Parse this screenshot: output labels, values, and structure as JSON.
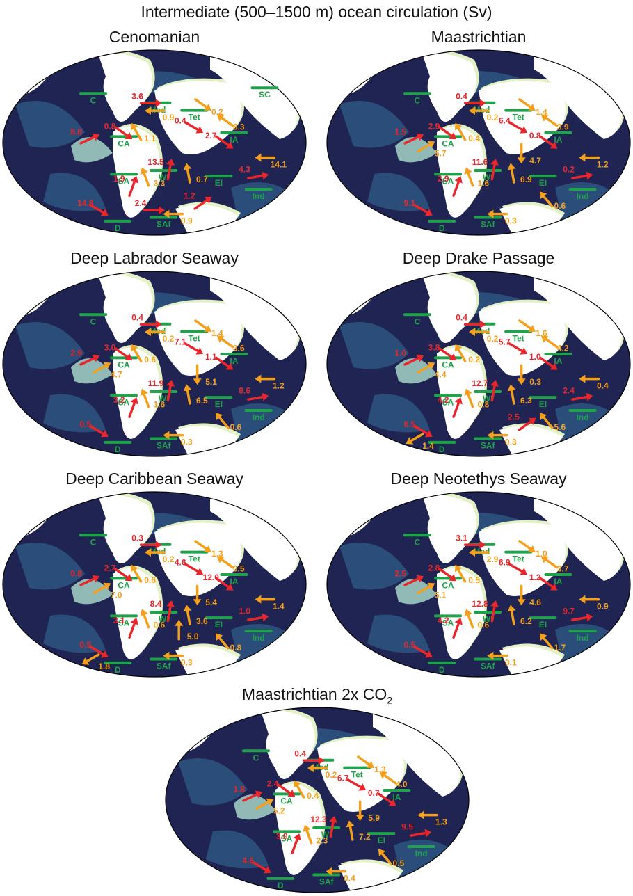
{
  "figure_title": "Intermediate (500–1500 m) ocean circulation (Sv)",
  "colors": {
    "red_arrow": "#e8262b",
    "orange_arrow": "#f4a01c",
    "gateway": "#1ea24a",
    "ocean_deep": "#1f2452",
    "ocean_shallow": "#aee0cf",
    "land": "#ffffff",
    "coast": "#e4f1c6"
  },
  "panels": [
    {
      "title": "Cenomanian",
      "gateways": [
        "C",
        "CA",
        "Med",
        "Tet",
        "SC",
        "IA",
        "SA",
        "WI",
        "EI",
        "Ind",
        "D",
        "SAf"
      ],
      "red_labels": [
        "3.6",
        "8.8",
        "0.8",
        "1.9",
        "0.4",
        "2.7",
        "13.5",
        "4.3",
        "14.8",
        "1.2",
        "2.4"
      ],
      "orange_labels": [
        "0.9",
        "0.2",
        "1.1",
        "3.3",
        "8.3",
        "14.1",
        "0.7",
        "0.9"
      ]
    },
    {
      "title": "Maastrichtian",
      "gateways": [
        "C",
        "CA",
        "Med",
        "Tet",
        "IA",
        "SA",
        "WI",
        "EI",
        "Ind",
        "D",
        "SAf"
      ],
      "red_labels": [
        "0.4",
        "1.5",
        "2.9",
        "2.9",
        "6.4",
        "0.8",
        "11.6",
        "0.2",
        "9.1"
      ],
      "orange_labels": [
        "0.2",
        "1.4",
        "0.4",
        "1.6",
        "3.9",
        "1.2",
        "6.9",
        "0.3",
        "0.6",
        "5.7",
        "4.7"
      ]
    },
    {
      "title": "Deep Labrador Seaway",
      "gateways": [
        "C",
        "CA",
        "Med",
        "Tet",
        "IA",
        "SA",
        "WI",
        "EI",
        "Ind",
        "D",
        "SAf"
      ],
      "red_labels": [
        "0.4",
        "2.9",
        "3.0",
        "3.2",
        "7.1",
        "1.1",
        "11.9",
        "8.6",
        "0.5"
      ],
      "orange_labels": [
        "0.2",
        "1.4",
        "0.6",
        "1.6",
        "3.6",
        "1.2",
        "6.5",
        "0.3",
        "0.6",
        "4.7",
        "5.1"
      ]
    },
    {
      "title": "Deep Drake Passage",
      "gateways": [
        "C",
        "CA",
        "Med",
        "Tet",
        "IA",
        "SA",
        "WI",
        "EI",
        "Ind",
        "D",
        "SAf"
      ],
      "red_labels": [
        "0.4",
        "1.0",
        "3.8",
        "4.2",
        "5.7",
        "1.0",
        "12.7",
        "2.4",
        "8.5",
        "2.5"
      ],
      "orange_labels": [
        "0.2",
        "1.6",
        "0.2",
        "0.8",
        "4.2",
        "0.4",
        "6.3",
        "0.3",
        "5.6",
        "4.4",
        "0.3",
        "1.4"
      ]
    },
    {
      "title": "Deep Caribbean Seaway",
      "gateways": [
        "C",
        "CA",
        "Med",
        "Tet",
        "IA",
        "SA",
        "WI",
        "EI",
        "Ind",
        "D",
        "SAf"
      ],
      "red_labels": [
        "0.3",
        "0.8",
        "2.7",
        "3.1",
        "4.6",
        "12.0",
        "8.4",
        "1.0",
        "0.5"
      ],
      "orange_labels": [
        "0.2",
        "1.3",
        "0.6",
        "0.6",
        "0.5",
        "1.4",
        "3.6",
        "0.3",
        "0.8",
        "7.0",
        "5.4",
        "1.8",
        "5.0"
      ]
    },
    {
      "title": "Deep Neotethys Seaway",
      "gateways": [
        "C",
        "CA",
        "Med",
        "Tet",
        "IA",
        "SA",
        "WI",
        "EI",
        "Ind",
        "D",
        "SAf"
      ],
      "red_labels": [
        "3.1",
        "2.5",
        "2.8",
        "4.2",
        "6.9",
        "1.2",
        "12.8",
        "9.7",
        "0.5"
      ],
      "orange_labels": [
        "2.9",
        "1.0",
        "0.5",
        "0.6",
        "3.7",
        "0.9",
        "6.2",
        "0.1",
        "1.7",
        "5.1",
        "4.6"
      ]
    },
    {
      "title": "Maastrichtian 2x CO",
      "title_sub": "2",
      "gateways": [
        "C",
        "CA",
        "Med",
        "Tet",
        "IA",
        "SA",
        "WI",
        "EI",
        "Ind",
        "D",
        "SAf"
      ],
      "red_labels": [
        "0.4",
        "1.8",
        "2.4",
        "3.0",
        "6.7",
        "0.7",
        "12.3",
        "9.5",
        "4.6"
      ],
      "orange_labels": [
        "0.2",
        "1.3",
        "0.4",
        "2.3",
        "4.0",
        "1.3",
        "7.2",
        "0.4",
        "0.5",
        "5.2",
        "5.9"
      ]
    }
  ]
}
